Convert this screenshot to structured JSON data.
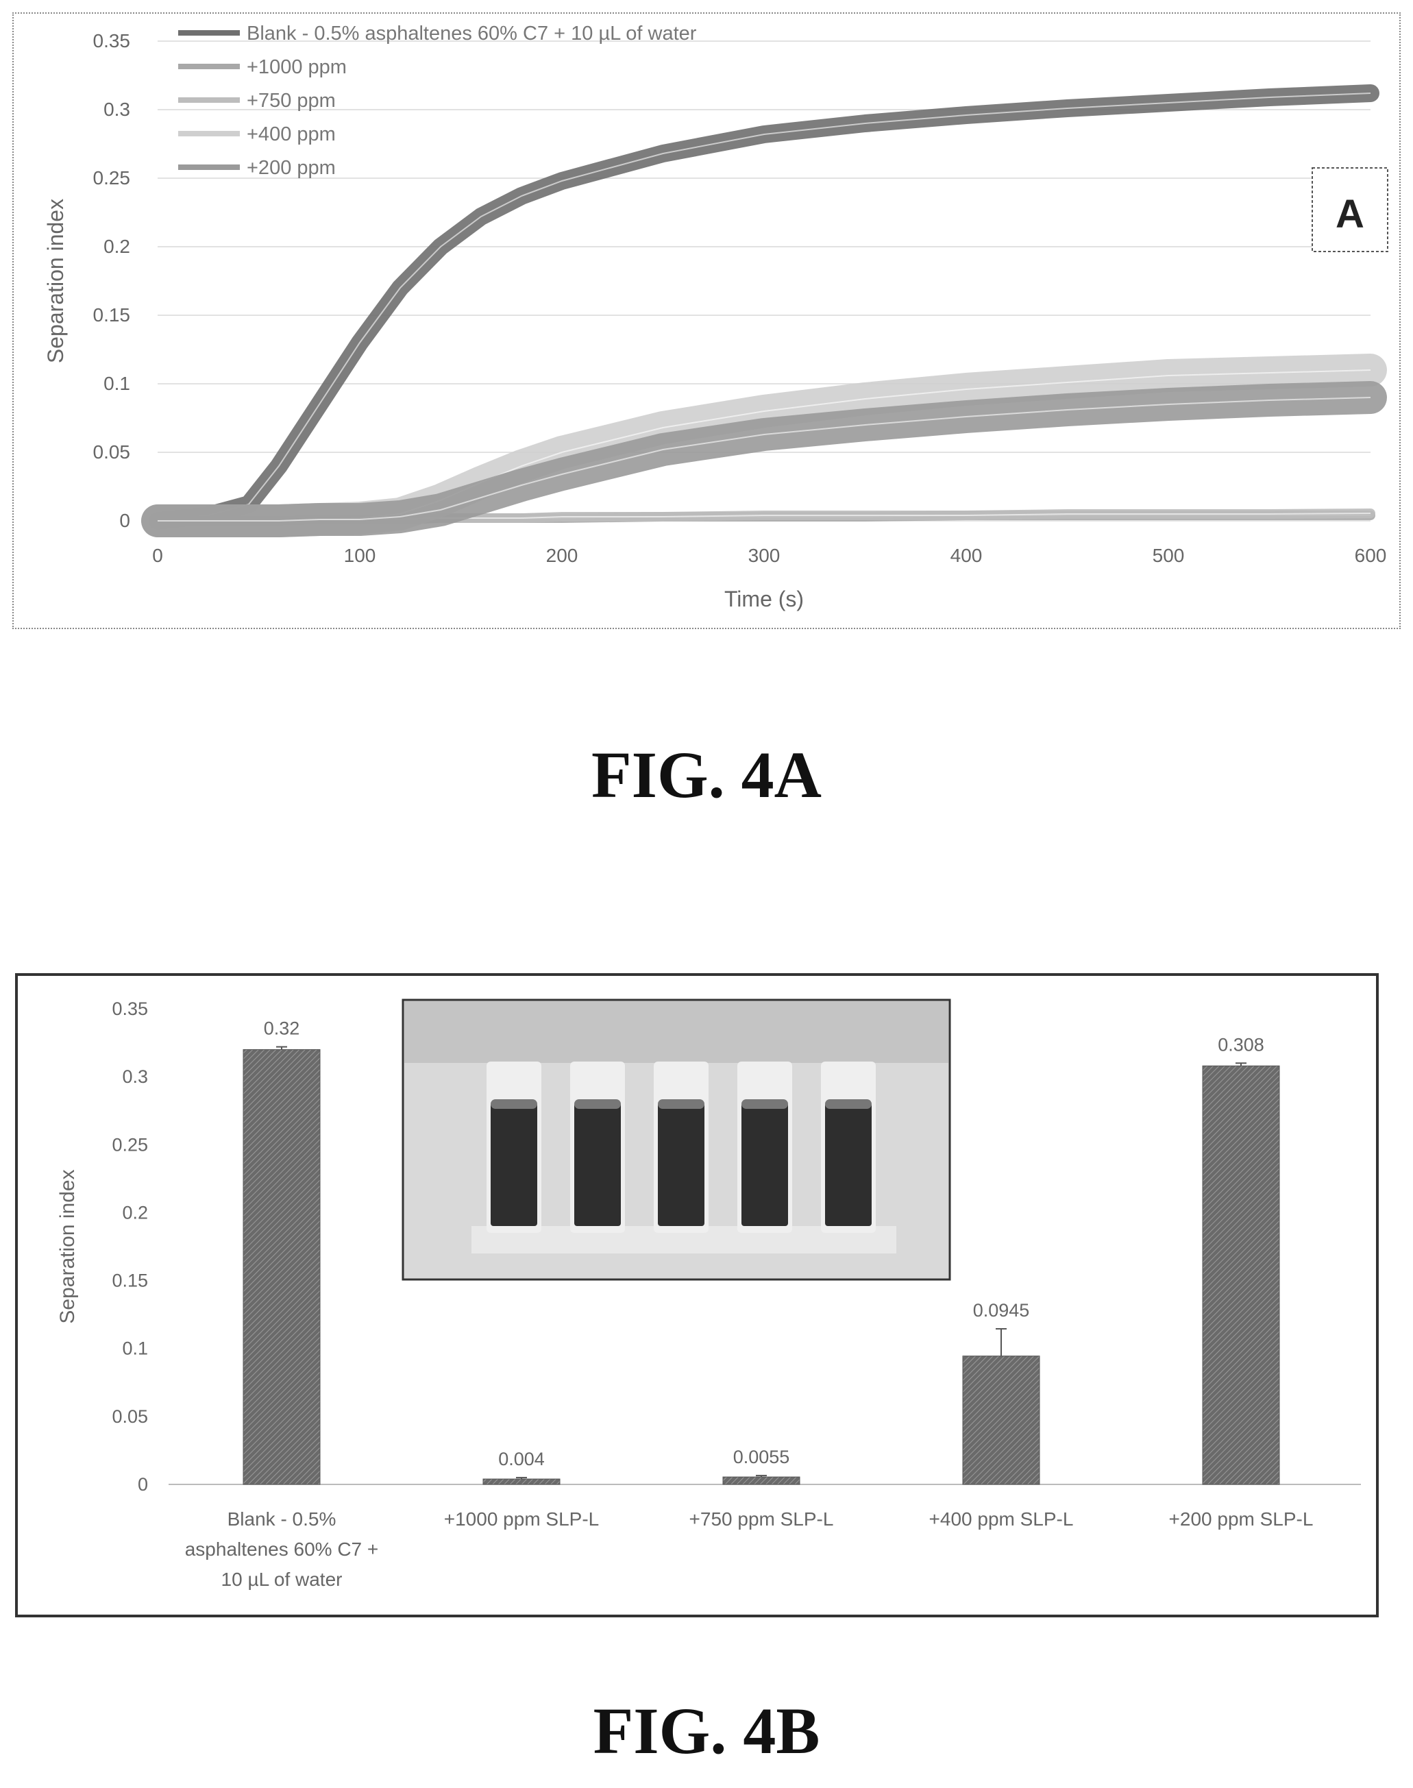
{
  "chart_data": [
    {
      "id": "A",
      "type": "line",
      "panel_label": "A",
      "title": "",
      "xlabel": "Time (s)",
      "ylabel": "Separation index",
      "xlim": [
        0,
        600
      ],
      "ylim": [
        0,
        0.35
      ],
      "x_ticks": [
        "0",
        "100",
        "200",
        "300",
        "400",
        "500",
        "600"
      ],
      "y_ticks": [
        "0",
        "0.05",
        "0.1",
        "0.15",
        "0.2",
        "0.25",
        "0.3",
        "0.35"
      ],
      "legend_position": "top-left",
      "grid": true,
      "x": [
        0,
        25,
        45,
        60,
        80,
        100,
        120,
        140,
        160,
        180,
        200,
        250,
        300,
        350,
        400,
        450,
        500,
        550,
        600
      ],
      "series": [
        {
          "name": "Blank - 0.5% asphaltenes 60% C7 + 10 µL of water",
          "color": "#6f6f6f",
          "values": [
            0,
            0.004,
            0.012,
            0.04,
            0.085,
            0.13,
            0.17,
            0.2,
            0.222,
            0.237,
            0.248,
            0.268,
            0.282,
            0.29,
            0.296,
            0.301,
            0.305,
            0.309,
            0.312
          ]
        },
        {
          "name": "+1000 ppm",
          "color": "#a8a8a8",
          "values": [
            0,
            0,
            0,
            0,
            0.001,
            0.001,
            0.001,
            0.002,
            0.002,
            0.002,
            0.002,
            0.003,
            0.003,
            0.003,
            0.004,
            0.004,
            0.004,
            0.004,
            0.004
          ]
        },
        {
          "name": "+750 ppm",
          "color": "#bdbdbd",
          "values": [
            0,
            0,
            0,
            0,
            0.001,
            0.001,
            0.001,
            0.002,
            0.002,
            0.002,
            0.003,
            0.003,
            0.004,
            0.004,
            0.004,
            0.005,
            0.005,
            0.005,
            0.0055
          ]
        },
        {
          "name": "+400 ppm",
          "color": "#cfcfcf",
          "values": [
            0,
            0,
            0,
            0,
            0.001,
            0.002,
            0.005,
            0.015,
            0.028,
            0.04,
            0.05,
            0.068,
            0.08,
            0.089,
            0.096,
            0.101,
            0.106,
            0.108,
            0.11
          ]
        },
        {
          "name": "+200 ppm",
          "color": "#9a9a9a",
          "values": [
            0,
            0,
            0,
            0,
            0.001,
            0.001,
            0.003,
            0.008,
            0.017,
            0.026,
            0.034,
            0.052,
            0.063,
            0.07,
            0.076,
            0.081,
            0.085,
            0.088,
            0.09
          ]
        }
      ]
    },
    {
      "id": "B",
      "type": "bar",
      "title": "",
      "xlabel": "",
      "ylabel": "Separation index",
      "ylim": [
        0,
        0.35
      ],
      "y_ticks": [
        "0",
        "0.05",
        "0.1",
        "0.15",
        "0.2",
        "0.25",
        "0.3",
        "0.35"
      ],
      "grid": false,
      "categories": [
        [
          "Blank - 0.5%",
          "asphaltenes 60% C7 +",
          "10 µL of water"
        ],
        [
          "+1000 ppm SLP-L"
        ],
        [
          "+750 ppm SLP-L"
        ],
        [
          "+400 ppm SLP-L"
        ],
        [
          "+200 ppm SLP-L"
        ]
      ],
      "values": [
        0.32,
        0.004,
        0.0055,
        0.0945,
        0.308
      ],
      "data_labels": [
        "0.32",
        "0.004",
        "0.0055",
        "0.0945",
        "0.308"
      ],
      "errors": [
        0.002,
        0.001,
        0.001,
        0.02,
        0.002
      ],
      "bar_color": "#6a6a6a",
      "inset": "photo of five vials with dark liquid"
    }
  ],
  "captions": {
    "fig_a": "FIG. 4A",
    "fig_b": "FIG. 4B"
  }
}
